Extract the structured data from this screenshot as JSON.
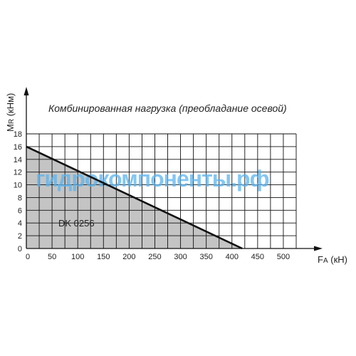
{
  "chart_data": {
    "type": "area",
    "title": "Комбинированная нагрузка (преобладание осевой)",
    "ylabel": "MR (кНм)",
    "ylabel_main": "M",
    "ylabel_sub": "R",
    "ylabel_unit": " (кНм)",
    "xlabel": "FA (кН)",
    "xlabel_main": "F",
    "xlabel_sub": "A",
    "xlabel_unit": " (кН)",
    "xlim": [
      0,
      525
    ],
    "ylim": [
      0,
      18
    ],
    "grid": true,
    "x_ticks": [
      0,
      50,
      100,
      150,
      200,
      250,
      300,
      350,
      400,
      450,
      500
    ],
    "y_ticks": [
      0,
      2,
      4,
      6,
      8,
      10,
      12,
      14,
      16,
      18
    ],
    "series": [
      {
        "name": "DK 0256",
        "x": [
          0,
          420
        ],
        "y": [
          16,
          0
        ],
        "fill": "#c4c4c4",
        "line": "#111111"
      }
    ],
    "watermark": "гидрокомпоненты.рф"
  }
}
